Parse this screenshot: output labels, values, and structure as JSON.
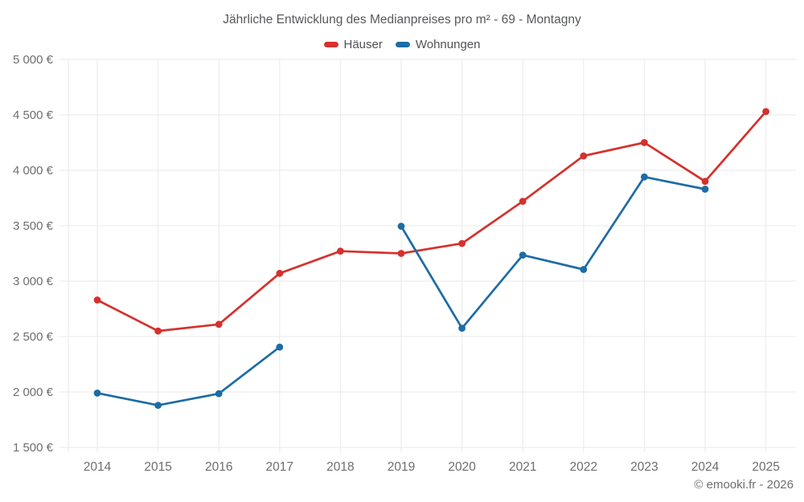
{
  "chart_data": {
    "type": "line",
    "title": "Jährliche Entwicklung des Medianpreises pro m² - 69 - Montagny",
    "categories": [
      "2014",
      "2015",
      "2016",
      "2017",
      "2018",
      "2019",
      "2020",
      "2021",
      "2022",
      "2023",
      "2024",
      "2025"
    ],
    "series": [
      {
        "name": "Häuser",
        "color": "#d5312d",
        "values": [
          2830,
          2550,
          2610,
          3070,
          3270,
          3250,
          3340,
          3720,
          4130,
          4250,
          3900,
          4530
        ]
      },
      {
        "name": "Wohnungen",
        "color": "#1d6ca5",
        "values": [
          1990,
          1880,
          1985,
          2405,
          null,
          3495,
          2575,
          3235,
          3105,
          3940,
          3830,
          null
        ]
      }
    ],
    "xlabel": "",
    "ylabel": "",
    "ylim": [
      1500,
      5000
    ],
    "yticks": [
      {
        "value": 1500,
        "label": "1 500 €"
      },
      {
        "value": 2000,
        "label": "2 000 €"
      },
      {
        "value": 2500,
        "label": "2 500 €"
      },
      {
        "value": 3000,
        "label": "3 000 €"
      },
      {
        "value": 3500,
        "label": "3 500 €"
      },
      {
        "value": 4000,
        "label": "4 000 €"
      },
      {
        "value": 4500,
        "label": "4 500 €"
      },
      {
        "value": 5000,
        "label": "5 000 €"
      }
    ],
    "grid": true,
    "legend_position": "top",
    "marker": "circle"
  },
  "footer": {
    "copyright": "© emooki.fr - 2026"
  }
}
